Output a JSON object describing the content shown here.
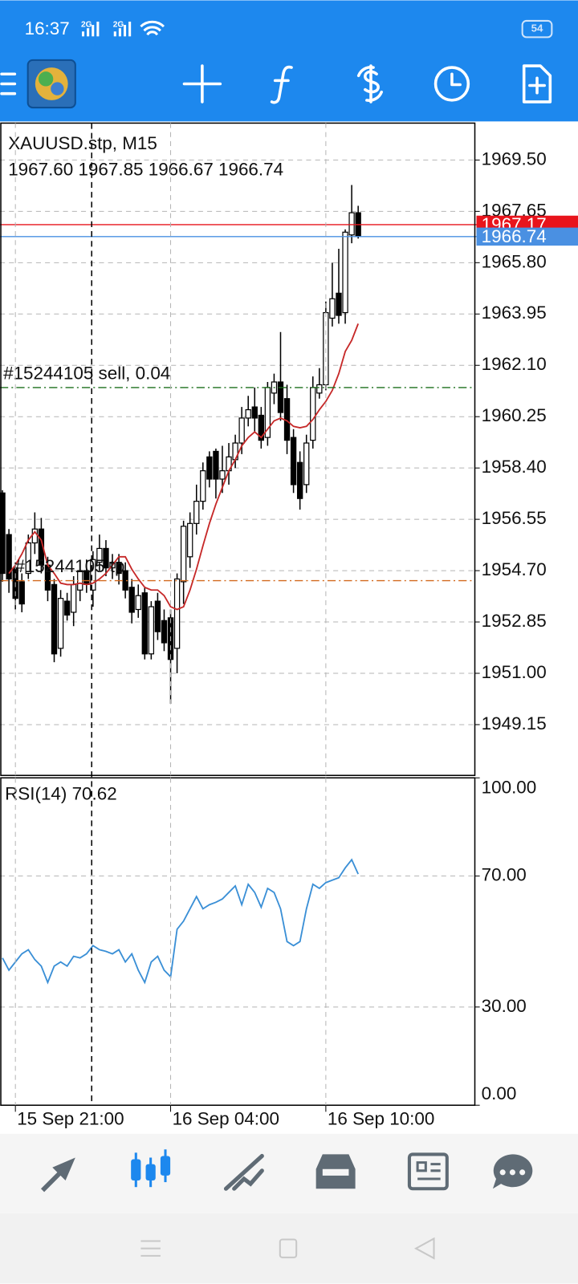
{
  "status_bar": {
    "time": "16:37",
    "signal_1": "2G",
    "signal_2": "2G",
    "battery": "54"
  },
  "chart_data": [
    {
      "type": "candlestick",
      "title": "XAUUSD.stp, M15",
      "subtitle": "1967.60 1967.85 1966.67 1966.74",
      "open": [
        1957.5,
        1956.0,
        1954.8,
        1954.3,
        1954.6,
        1955.7,
        1956.2,
        1954.9,
        1954.2,
        1951.9,
        1953.6,
        1953.2,
        1954.0,
        1954.7,
        1954.0,
        1955.0,
        1955.5,
        1954.8,
        1955.0,
        1954.7,
        1954.1,
        1953.3,
        1953.9,
        1951.7,
        1953.6,
        1952.9,
        1953.0,
        1951.9,
        1954.3,
        1955.2,
        1956.4,
        1957.2,
        1958.8,
        1959.0,
        1958.0,
        1958.3,
        1958.7,
        1959.3,
        1960.2,
        1960.6,
        1960.3,
        1959.5,
        1961.1,
        1961.5,
        1960.9,
        1959.5,
        1958.6,
        1957.8,
        1959.4,
        1961.1,
        1961.4,
        1963.8,
        1964.7,
        1964.0,
        1966.8,
        1967.6
      ],
      "high": [
        1957.6,
        1956.2,
        1955.0,
        1954.6,
        1956.0,
        1956.8,
        1956.6,
        1955.2,
        1954.4,
        1954.0,
        1953.9,
        1954.5,
        1955.0,
        1955.1,
        1955.4,
        1956.0,
        1955.8,
        1955.3,
        1955.3,
        1955.0,
        1954.4,
        1954.2,
        1954.1,
        1953.6,
        1953.9,
        1953.3,
        1953.3,
        1954.6,
        1956.5,
        1956.8,
        1957.8,
        1958.6,
        1959.0,
        1959.1,
        1959.2,
        1959.3,
        1959.6,
        1960.6,
        1961.0,
        1961.3,
        1960.6,
        1961.5,
        1961.8,
        1963.3,
        1961.4,
        1959.8,
        1959.0,
        1959.6,
        1961.7,
        1962.0,
        1964.4,
        1965.8,
        1966.3,
        1967.0,
        1968.6,
        1967.85
      ],
      "low": [
        1954.3,
        1953.9,
        1953.3,
        1953.2,
        1954.4,
        1955.3,
        1954.6,
        1953.6,
        1951.4,
        1951.6,
        1952.9,
        1952.7,
        1953.6,
        1953.9,
        1953.4,
        1954.7,
        1954.5,
        1954.4,
        1954.2,
        1953.7,
        1952.8,
        1953.0,
        1951.5,
        1951.5,
        1952.2,
        1951.8,
        1949.9,
        1951.0,
        1953.5,
        1954.8,
        1956.0,
        1956.9,
        1957.7,
        1957.3,
        1957.5,
        1957.8,
        1958.4,
        1958.9,
        1959.9,
        1959.7,
        1959.1,
        1959.2,
        1960.7,
        1960.1,
        1958.9,
        1957.5,
        1956.9,
        1957.5,
        1959.1,
        1960.9,
        1961.2,
        1963.5,
        1963.6,
        1963.6,
        1966.5,
        1966.67
      ],
      "close": [
        1954.6,
        1954.4,
        1953.7,
        1953.5,
        1955.7,
        1956.2,
        1954.9,
        1954.0,
        1951.7,
        1953.7,
        1953.1,
        1954.2,
        1954.7,
        1954.2,
        1955.1,
        1955.5,
        1954.8,
        1955.0,
        1954.6,
        1954.0,
        1953.2,
        1953.8,
        1951.7,
        1953.4,
        1952.5,
        1952.1,
        1951.5,
        1954.4,
        1956.3,
        1956.4,
        1957.2,
        1958.3,
        1958.0,
        1958.0,
        1958.3,
        1958.8,
        1959.3,
        1960.2,
        1960.5,
        1960.2,
        1959.4,
        1961.3,
        1961.5,
        1960.4,
        1959.4,
        1957.8,
        1957.3,
        1959.3,
        1961.3,
        1961.4,
        1964.0,
        1964.5,
        1963.9,
        1966.9,
        1967.6,
        1966.74
      ],
      "up_color": "#ffffff",
      "down_color": "#000000",
      "overlay": {
        "color": "#c62828",
        "values": [
          null,
          1954.6,
          1954.9,
          1955.3,
          1955.8,
          1956.1,
          1955.8,
          1954.9,
          1954.6,
          1954.25,
          1954.2,
          1954.2,
          1954.25,
          1954.2,
          1954.25,
          1954.4,
          1954.6,
          1954.9,
          1955.2,
          1955.2,
          1954.75,
          1954.4,
          1954.1,
          1954.0,
          1954.0,
          1953.8,
          1953.4,
          1953.3,
          1953.4,
          1954.0,
          1954.75,
          1955.6,
          1956.4,
          1957.1,
          1957.7,
          1958.3,
          1958.7,
          1959.2,
          1959.5,
          1959.7,
          1959.5,
          1959.8,
          1960.1,
          1960.2,
          1960.1,
          1959.9,
          1959.85,
          1959.9,
          1960.15,
          1960.5,
          1960.8,
          1961.2,
          1961.8,
          1962.6,
          1963.0,
          1963.6
        ]
      },
      "levels": [
        {
          "value": 1961.3,
          "label": "#15244105 sell, 0.04",
          "color": "#1b6e1b",
          "line_style": "dashdot",
          "label_position": "left"
        },
        {
          "value": 1954.34,
          "label": "#15244105 tp",
          "color": "#d2691e",
          "line_style": "dashdot",
          "label_position": "left"
        },
        {
          "value": 1967.17,
          "label": "1967.17",
          "color": "#e8141c",
          "line_style": "solid",
          "label_position": "axis"
        },
        {
          "value": 1966.74,
          "label": "1966.74",
          "color": "#4a90e2",
          "line_style": "solid",
          "label_position": "axis"
        }
      ],
      "xlim": [
        -0.38,
        73.04
      ],
      "ylim": [
        1947.32,
        1970.83
      ],
      "xticks": [
        {
          "value": 2,
          "label": "15 Sep 21:00"
        },
        {
          "value": 26,
          "label": "16 Sep 04:00"
        },
        {
          "value": 50,
          "label": "16 Sep 10:00"
        }
      ],
      "yticks": [
        {
          "value": 1969.5,
          "label": "1969.50"
        },
        {
          "value": 1967.65,
          "label": "1967.65"
        },
        {
          "value": 1965.8,
          "label": "1965.80"
        },
        {
          "value": 1963.95,
          "label": "1963.95"
        },
        {
          "value": 1962.1,
          "label": "1962.10"
        },
        {
          "value": 1960.25,
          "label": "1960.25"
        },
        {
          "value": 1958.4,
          "label": "1958.40"
        },
        {
          "value": 1956.55,
          "label": "1956.55"
        },
        {
          "value": 1954.7,
          "label": "1954.70"
        },
        {
          "value": 1952.85,
          "label": "1952.85"
        },
        {
          "value": 1951.0,
          "label": "1951.00"
        },
        {
          "value": 1949.15,
          "label": "1949.15"
        }
      ],
      "grid": true
    },
    {
      "type": "line",
      "title": "RSI(14) 70.62",
      "color": "#3a8fd6",
      "values": [
        45,
        41.25,
        43.75,
        46.25,
        47.5,
        44.5,
        42.5,
        37.5,
        42.5,
        43.75,
        42.5,
        45.5,
        45,
        46.25,
        48.75,
        47.5,
        47,
        46.25,
        47.5,
        43.75,
        46.25,
        41.25,
        37.5,
        43.75,
        45.5,
        41.25,
        39.25,
        53.75,
        56.25,
        60,
        63.75,
        60,
        61.25,
        62,
        63,
        65,
        67,
        61.25,
        67.5,
        65,
        60.5,
        66.25,
        65,
        60,
        50,
        48.75,
        50,
        60,
        67.5,
        66.25,
        68,
        68.75,
        69.5,
        72.5,
        75,
        70.62
      ],
      "xlim": [
        -0.38,
        73.04
      ],
      "ylim": [
        0,
        100
      ],
      "yticks": [
        {
          "value": 100,
          "label": "100.00"
        },
        {
          "value": 70,
          "label": "70.00"
        },
        {
          "value": 30,
          "label": "30.00"
        },
        {
          "value": 0,
          "label": "0.00"
        }
      ],
      "grid": true
    }
  ]
}
